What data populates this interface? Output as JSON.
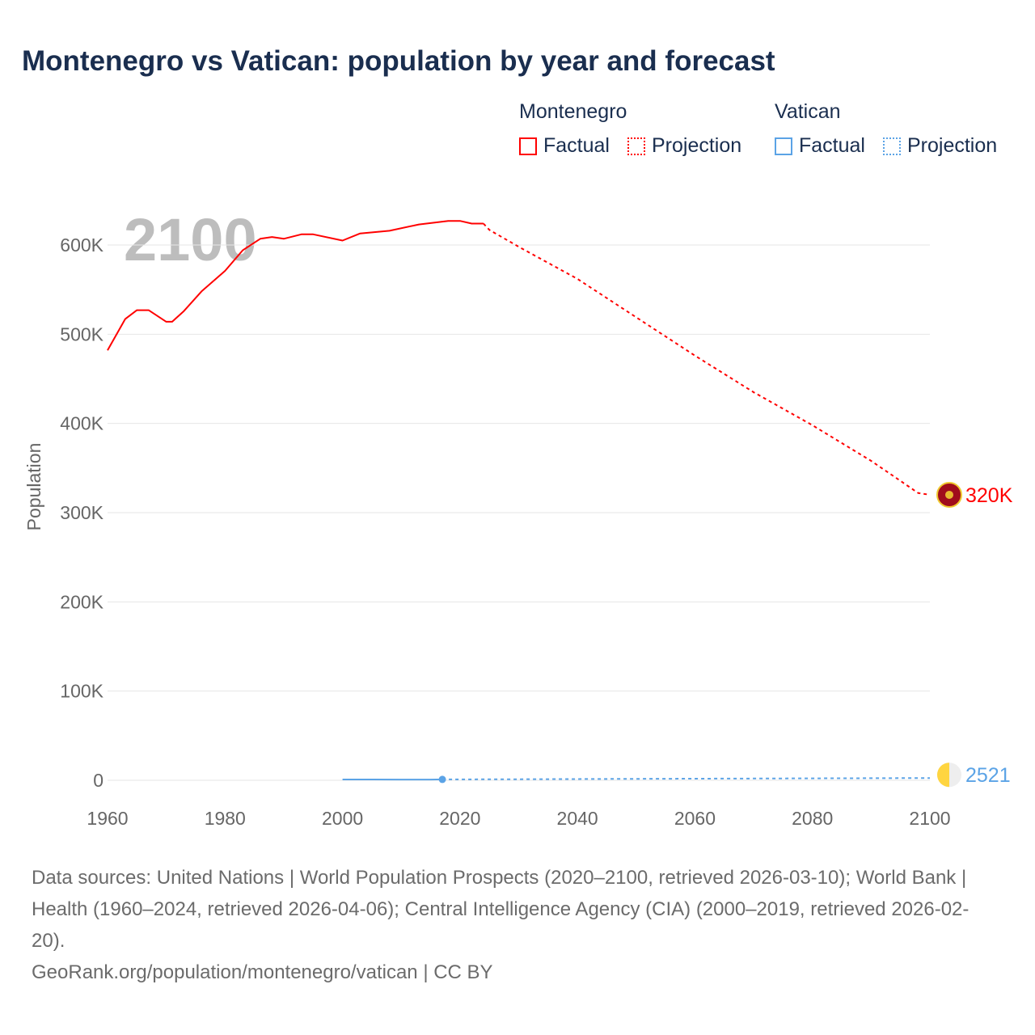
{
  "title": "Montenegro vs Vatican: population by year and forecast",
  "legend": {
    "groups": [
      {
        "name": "Montenegro",
        "color": "#ff0000",
        "factual": "Factual",
        "projection": "Projection"
      },
      {
        "name": "Vatican",
        "color": "#5ba3e6",
        "factual": "Factual",
        "projection": "Projection"
      }
    ]
  },
  "chart_data": {
    "type": "line",
    "title": "Montenegro vs Vatican: population by year and forecast",
    "xlabel": "",
    "ylabel": "Population",
    "xlim": [
      1960,
      2100
    ],
    "ylim": [
      0,
      650000
    ],
    "x_ticks": [
      1960,
      1980,
      2000,
      2020,
      2040,
      2060,
      2080,
      2100
    ],
    "x_tick_labels": [
      "1960",
      "1980",
      "2000",
      "2020",
      "2040",
      "2060",
      "2080",
      "2100"
    ],
    "y_ticks": [
      0,
      100000,
      200000,
      300000,
      400000,
      500000,
      600000
    ],
    "y_tick_labels": [
      "0",
      "100K",
      "200K",
      "300K",
      "400K",
      "500K",
      "600K"
    ],
    "grid": true,
    "year_watermark": "2100",
    "series": [
      {
        "name": "Montenegro Factual",
        "color": "#ff0000",
        "style": "solid",
        "x": [
          1960,
          1963,
          1965,
          1967,
          1970,
          1971,
          1973,
          1976,
          1980,
          1983,
          1986,
          1988,
          1990,
          1993,
          1995,
          2000,
          2003,
          2008,
          2013,
          2018,
          2020,
          2022,
          2024
        ],
        "y": [
          482000,
          517000,
          527000,
          527000,
          514000,
          514000,
          526000,
          548000,
          571000,
          594000,
          607000,
          609000,
          607000,
          612000,
          612000,
          605000,
          613000,
          616000,
          623000,
          627000,
          627000,
          624000,
          624000
        ]
      },
      {
        "name": "Montenegro Projection",
        "color": "#ff0000",
        "style": "dotted",
        "x": [
          2024,
          2025,
          2030,
          2040,
          2050,
          2060,
          2070,
          2080,
          2090,
          2098,
          2100
        ],
        "y": [
          624000,
          617000,
          598000,
          562000,
          519000,
          476000,
          435000,
          398000,
          358000,
          322000,
          320000
        ]
      },
      {
        "name": "Vatican Factual",
        "color": "#5ba3e6",
        "style": "solid",
        "x": [
          2000,
          2005,
          2010,
          2015,
          2017
        ],
        "y": [
          870,
          900,
          830,
          840,
          1000
        ]
      },
      {
        "name": "Vatican Projection",
        "color": "#5ba3e6",
        "style": "dotted",
        "x": [
          2017,
          2030,
          2050,
          2070,
          2090,
          2100
        ],
        "y": [
          1000,
          1200,
          1600,
          2000,
          2400,
          2521
        ]
      }
    ],
    "end_labels": [
      {
        "series": "Montenegro",
        "text": "320K",
        "value": 320000,
        "color": "#ff0000"
      },
      {
        "series": "Vatican",
        "text": "2521",
        "value": 2521,
        "color": "#5ba3e6"
      }
    ]
  },
  "footer": {
    "sources": "Data sources: United Nations | World Population Prospects (2020–2100, retrieved 2026-03-10); World Bank | Health (1960–2024, retrieved 2026-04-06); Central Intelligence Agency (CIA) (2000–2019, retrieved 2026-02-20).",
    "link": "GeoRank.org/population/montenegro/vatican | CC BY"
  }
}
